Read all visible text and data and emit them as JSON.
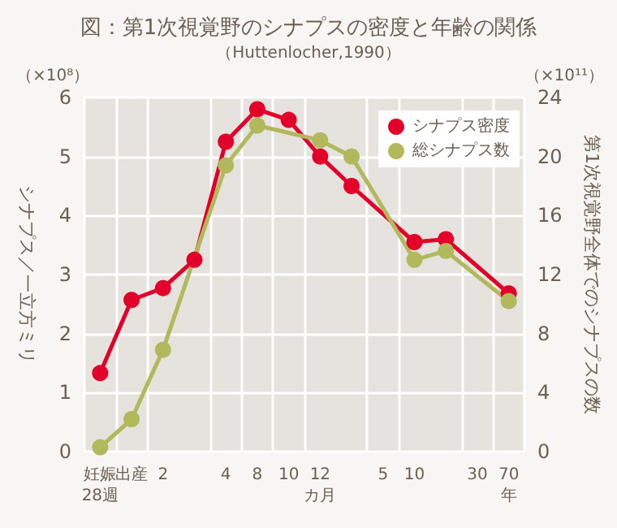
{
  "chart_data": {
    "type": "line",
    "title": "図：第1次視覚野のシナプスの密度と年齢の関係",
    "subtitle": "（Huttenlocher,1990）",
    "ylabel": "シナプス／一立方ミリ",
    "y2label": "第1次視覚野全体でのシナプスの数",
    "annotations": [
      "（×10⁸）",
      "（×10¹¹）"
    ],
    "categories": [
      "妊娠\n28週",
      "出産",
      "2",
      null,
      "4",
      "8",
      "10",
      "12\nカ月",
      null,
      "5",
      "10",
      null,
      "30",
      "70\n年"
    ],
    "ylim": [
      0,
      6
    ],
    "yticks": [
      0,
      1,
      2,
      3,
      4,
      5,
      6
    ],
    "y2lim": [
      0,
      24
    ],
    "y2ticks": [
      0,
      4,
      8,
      12,
      16,
      20,
      24
    ],
    "series": [
      {
        "name": "シナプス密度",
        "color": "#e2002a",
        "values": [
          1.33,
          2.57,
          2.77,
          3.25,
          5.25,
          5.8,
          5.62,
          5.0,
          4.5,
          null,
          3.55,
          3.6,
          null,
          2.68
        ]
      },
      {
        "name": "総シナプス数",
        "color": "#b2b95c",
        "axis": "y2",
        "values": [
          0.3,
          2.2,
          6.9,
          null,
          19.4,
          22.1,
          null,
          21.1,
          20,
          null,
          13.0,
          13.6,
          null,
          10.2
        ]
      }
    ],
    "marker": "circle",
    "line_style": "solid",
    "grid": true,
    "legend": "top right"
  }
}
